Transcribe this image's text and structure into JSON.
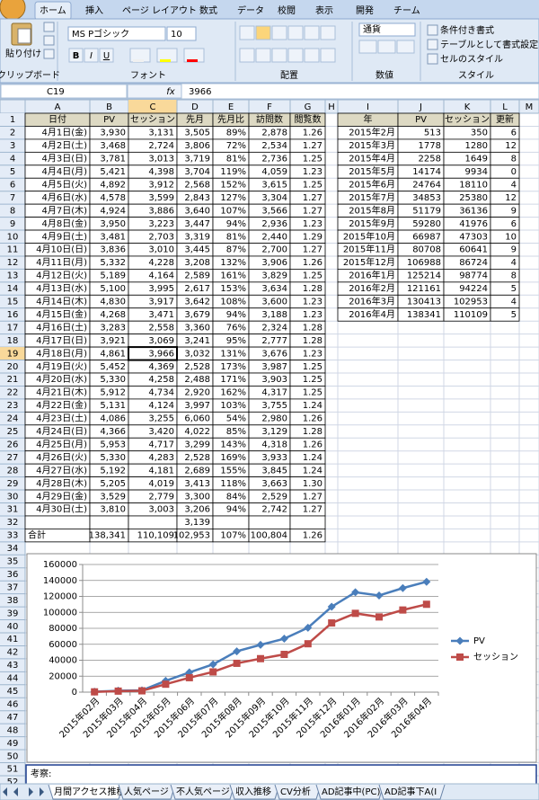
{
  "ribbon": {
    "tabs": [
      "ホーム",
      "挿入",
      "ページ レイアウト",
      "数式",
      "データ",
      "校閲",
      "表示",
      "開発",
      "チーム"
    ],
    "paste": "貼り付け",
    "font_name": "MS Pゴシック",
    "font_size": "10",
    "format_buttons": [
      "B",
      "I",
      "U"
    ],
    "number_format": "通貨",
    "styles": [
      "条件付き書式",
      "テーブルとして書式設定",
      "セルのスタイル"
    ],
    "groups": [
      "クリップボード",
      "フォント",
      "配置",
      "数値",
      "スタイル"
    ]
  },
  "formula_bar": {
    "name_box": "C19",
    "fx": "fx",
    "value": "3966"
  },
  "columns": [
    "A",
    "B",
    "C",
    "D",
    "E",
    "F",
    "G",
    "H",
    "I",
    "J",
    "K",
    "L",
    "M"
  ],
  "row_numbers": [
    1,
    2,
    3,
    4,
    5,
    6,
    7,
    8,
    9,
    10,
    11,
    12,
    13,
    14,
    15,
    16,
    17,
    18,
    19,
    20,
    21,
    22,
    23,
    24,
    25,
    26,
    27,
    28,
    29,
    30,
    31,
    32,
    33,
    34,
    35,
    36,
    37,
    38,
    39,
    40,
    41,
    42,
    43,
    44,
    45,
    46,
    47,
    48,
    49,
    50,
    51,
    52
  ],
  "table": {
    "rows": [
      [
        "日付",
        "PV",
        "セッション",
        "先月",
        "先月比",
        "訪問数",
        "閲覧数"
      ],
      [
        "4月1日(金)",
        "3,930",
        "3,131",
        "3,505",
        "89%",
        "2,878",
        "1.26"
      ],
      [
        "4月2日(土)",
        "3,468",
        "2,724",
        "3,806",
        "72%",
        "2,534",
        "1.27"
      ],
      [
        "4月3日(日)",
        "3,781",
        "3,013",
        "3,719",
        "81%",
        "2,736",
        "1.25"
      ],
      [
        "4月4日(月)",
        "5,421",
        "4,398",
        "3,704",
        "119%",
        "4,059",
        "1.23"
      ],
      [
        "4月5日(火)",
        "4,892",
        "3,912",
        "2,568",
        "152%",
        "3,615",
        "1.25"
      ],
      [
        "4月6日(水)",
        "4,578",
        "3,599",
        "2,843",
        "127%",
        "3,304",
        "1.27"
      ],
      [
        "4月7日(木)",
        "4,924",
        "3,886",
        "3,640",
        "107%",
        "3,566",
        "1.27"
      ],
      [
        "4月8日(金)",
        "3,950",
        "3,223",
        "3,447",
        "94%",
        "2,936",
        "1.23"
      ],
      [
        "4月9日(土)",
        "3,481",
        "2,703",
        "3,319",
        "81%",
        "2,440",
        "1.29"
      ],
      [
        "4月10日(日)",
        "3,836",
        "3,010",
        "3,445",
        "87%",
        "2,700",
        "1.27"
      ],
      [
        "4月11日(月)",
        "5,332",
        "4,228",
        "3,208",
        "132%",
        "3,906",
        "1.26"
      ],
      [
        "4月12日(火)",
        "5,189",
        "4,164",
        "2,589",
        "161%",
        "3,829",
        "1.25"
      ],
      [
        "4月13日(水)",
        "5,100",
        "3,995",
        "2,617",
        "153%",
        "3,634",
        "1.28"
      ],
      [
        "4月14日(木)",
        "4,830",
        "3,917",
        "3,642",
        "108%",
        "3,600",
        "1.23"
      ],
      [
        "4月15日(金)",
        "4,268",
        "3,471",
        "3,679",
        "94%",
        "3,188",
        "1.23"
      ],
      [
        "4月16日(土)",
        "3,283",
        "2,558",
        "3,360",
        "76%",
        "2,324",
        "1.28"
      ],
      [
        "4月17日(日)",
        "3,921",
        "3,069",
        "3,241",
        "95%",
        "2,777",
        "1.28"
      ],
      [
        "4月18日(月)",
        "4,861",
        "3,966",
        "3,032",
        "131%",
        "3,676",
        "1.23"
      ],
      [
        "4月19日(火)",
        "5,452",
        "4,369",
        "2,528",
        "173%",
        "3,987",
        "1.25"
      ],
      [
        "4月20日(水)",
        "5,330",
        "4,258",
        "2,488",
        "171%",
        "3,903",
        "1.25"
      ],
      [
        "4月21日(木)",
        "5,912",
        "4,734",
        "2,920",
        "162%",
        "4,317",
        "1.25"
      ],
      [
        "4月22日(金)",
        "5,131",
        "4,124",
        "3,997",
        "103%",
        "3,755",
        "1.24"
      ],
      [
        "4月23日(土)",
        "4,086",
        "3,255",
        "6,060",
        "54%",
        "2,980",
        "1.26"
      ],
      [
        "4月24日(日)",
        "4,366",
        "3,420",
        "4,022",
        "85%",
        "3,129",
        "1.28"
      ],
      [
        "4月25日(月)",
        "5,953",
        "4,717",
        "3,299",
        "143%",
        "4,318",
        "1.26"
      ],
      [
        "4月26日(火)",
        "5,330",
        "4,283",
        "2,528",
        "169%",
        "3,933",
        "1.24"
      ],
      [
        "4月27日(水)",
        "5,192",
        "4,181",
        "2,689",
        "155%",
        "3,845",
        "1.24"
      ],
      [
        "4月28日(木)",
        "5,205",
        "4,019",
        "3,413",
        "118%",
        "3,663",
        "1.30"
      ],
      [
        "4月29日(金)",
        "3,529",
        "2,779",
        "3,300",
        "84%",
        "2,529",
        "1.27"
      ],
      [
        "4月30日(土)",
        "3,810",
        "3,003",
        "3,206",
        "94%",
        "2,742",
        "1.27"
      ],
      [
        null,
        null,
        null,
        "3,139",
        null,
        null,
        null
      ],
      [
        "合計",
        "138,341",
        "110,109",
        "102,953",
        "107%",
        "100,804",
        "1.26"
      ]
    ]
  },
  "summary": {
    "header": [
      "年",
      "PV",
      "セッション",
      "更新"
    ],
    "rows": [
      [
        "2015年2月",
        513,
        350,
        6
      ],
      [
        "2015年3月",
        1778,
        1280,
        12
      ],
      [
        "2015年4月",
        2258,
        1649,
        8
      ],
      [
        "2015年5月",
        14174,
        9934,
        0
      ],
      [
        "2015年6月",
        24764,
        18110,
        4
      ],
      [
        "2015年7月",
        34853,
        25380,
        12
      ],
      [
        "2015年8月",
        51179,
        36136,
        9
      ],
      [
        "2015年9月",
        59280,
        41976,
        6
      ],
      [
        "2015年10月",
        66987,
        47303,
        10
      ],
      [
        "2015年11月",
        80708,
        60641,
        9
      ],
      [
        "2015年12月",
        106988,
        86724,
        4
      ],
      [
        "2016年1月",
        125214,
        98774,
        8
      ],
      [
        "2016年2月",
        121161,
        94224,
        5
      ],
      [
        "2016年3月",
        130413,
        102953,
        4
      ],
      [
        "2016年4月",
        138341,
        110109,
        5
      ]
    ]
  },
  "chart_data": {
    "type": "line",
    "categories": [
      "2015年02月",
      "2015年03月",
      "2015年04月",
      "2015年05月",
      "2015年06月",
      "2015年07月",
      "2015年08月",
      "2015年09月",
      "2015年10月",
      "2015年11月",
      "2015年12月",
      "2016年01月",
      "2016年02月",
      "2016年03月",
      "2016年04月"
    ],
    "series": [
      {
        "name": "PV",
        "color": "#4a7ebb",
        "marker": "diamond",
        "values": [
          513,
          1778,
          2258,
          14174,
          24764,
          34853,
          51179,
          59280,
          66987,
          80708,
          106988,
          125214,
          121161,
          130413,
          138341
        ]
      },
      {
        "name": "セッション",
        "color": "#be4b48",
        "marker": "square",
        "values": [
          350,
          1280,
          1649,
          9934,
          18110,
          25380,
          36136,
          41976,
          47303,
          60641,
          86724,
          98774,
          94224,
          102953,
          110109
        ]
      }
    ],
    "ylim": [
      0,
      160000
    ],
    "yticks": [
      0,
      20000,
      40000,
      60000,
      80000,
      100000,
      120000,
      140000,
      160000
    ],
    "grid": true,
    "legend": "right"
  },
  "note": "考察:",
  "sheet_tabs": [
    "月間アクセス推移",
    "人気ページ",
    "不人気ページ",
    "収入推移",
    "CV分析",
    "AD記事中(PC)",
    "AD記事下A(I"
  ]
}
